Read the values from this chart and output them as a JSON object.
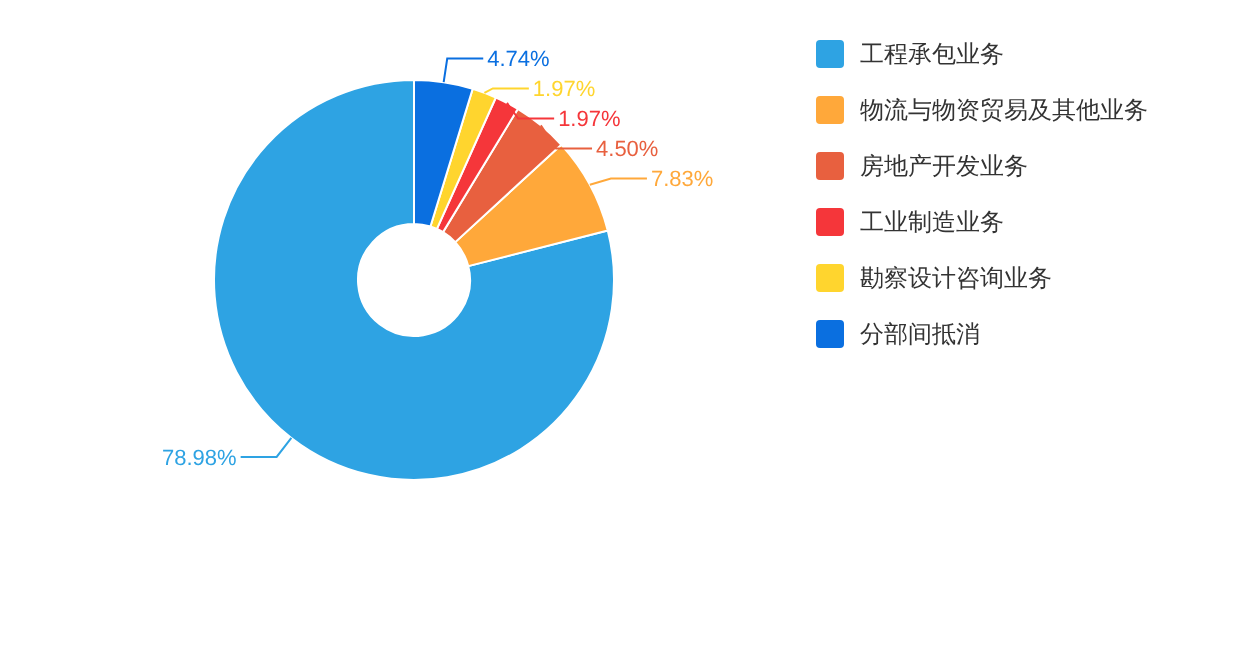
{
  "chart_data": {
    "type": "donut",
    "categories": [
      "工程承包业务",
      "物流与物资贸易及其他业务",
      "房地产开发业务",
      "工业制造业务",
      "勘察设计咨询业务",
      "分部间抵消"
    ],
    "values": [
      78.98,
      7.83,
      4.5,
      1.97,
      1.97,
      4.74
    ],
    "colors": [
      "#2ea3e3",
      "#ffa83a",
      "#e8603f",
      "#f5363a",
      "#ffd52e",
      "#0a6fe0"
    ],
    "value_labels": [
      "78.98%",
      "7.83%",
      "4.50%",
      "1.97%",
      "1.97%",
      "4.74%"
    ],
    "legend": "right"
  }
}
